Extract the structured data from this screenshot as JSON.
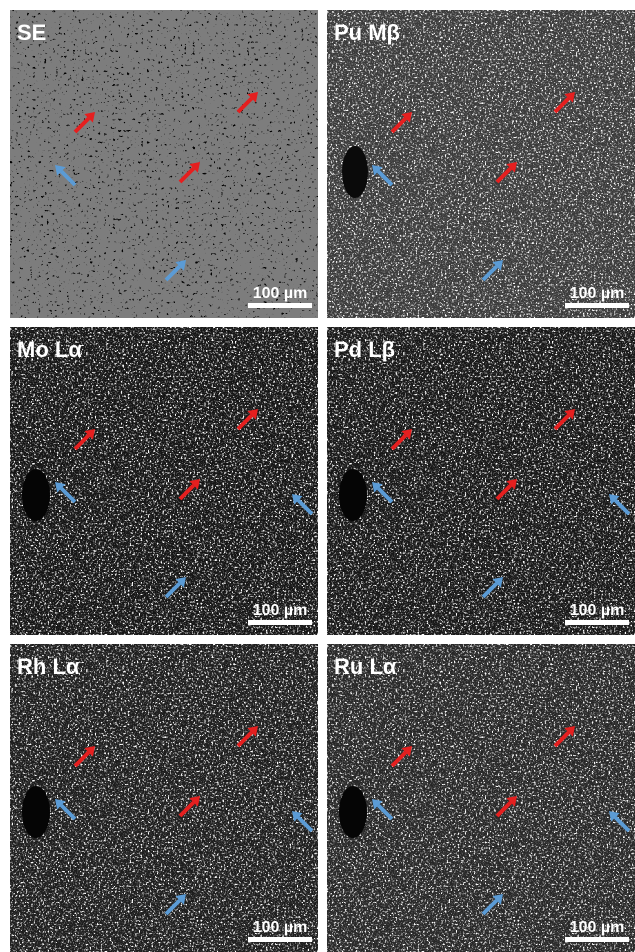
{
  "panels": [
    {
      "label": "SE",
      "scale": "100 µm"
    },
    {
      "label": "Pu Mβ",
      "scale": "100 µm"
    },
    {
      "label": "Mo Lα",
      "scale": "100 µm"
    },
    {
      "label": "Pd Lβ",
      "scale": "100 µm"
    },
    {
      "label": "Rh Lα",
      "scale": "100 µm"
    },
    {
      "label": "Ru Lα",
      "scale": "100 µm"
    }
  ]
}
